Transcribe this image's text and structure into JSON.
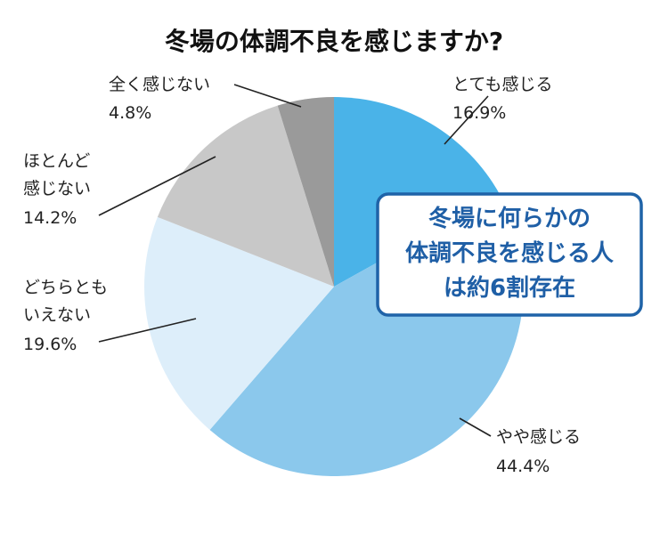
{
  "chart_data": {
    "type": "pie",
    "title": "冬場の体調不良を感じますか?",
    "slices": [
      {
        "name": "とても感じる",
        "value": 16.9,
        "label": "16.9%",
        "color": "#4ab3e8"
      },
      {
        "name": "やや感じる",
        "value": 44.4,
        "label": "44.4%",
        "color": "#8bc8ec"
      },
      {
        "name": "どちらとも\nいえない",
        "value": 19.6,
        "label": "19.6%",
        "color": "#ddeefa"
      },
      {
        "name": "ほとんど\n感じない",
        "value": 14.2,
        "label": "14.2%",
        "color": "#c8c8c8"
      },
      {
        "name": "全く感じない",
        "value": 4.8,
        "label": "4.8%",
        "color": "#9a9a9a"
      }
    ],
    "start": "top",
    "direction": "clockwise",
    "callout": [
      "冬場に何らかの",
      "体調不良を感じる人",
      "は約6割存在"
    ]
  }
}
